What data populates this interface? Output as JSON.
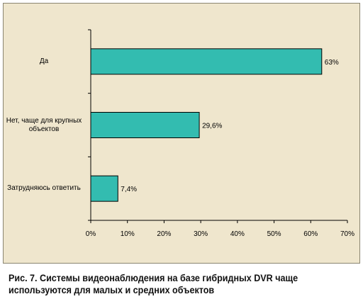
{
  "chart_data": {
    "type": "bar",
    "orientation": "horizontal",
    "categories": [
      "Да",
      "Нет, чаще для крупных объектов",
      "Затрудняюсь ответить"
    ],
    "values": [
      63,
      29.6,
      7.4
    ],
    "data_labels": [
      "63%",
      "29,6%",
      "7,4%"
    ],
    "xlim": [
      0,
      70
    ],
    "x_ticks": [
      "0%",
      "10%",
      "20%",
      "30%",
      "40%",
      "50%",
      "60%",
      "70%"
    ],
    "grid": false,
    "legend": "none",
    "bar_color": "#33bcb0",
    "plot_background": "#efe6cd"
  },
  "caption": "Рис. 7. Системы видеонаблюдения на базе гибридных DVR чаще используются для малых и средних объектов"
}
